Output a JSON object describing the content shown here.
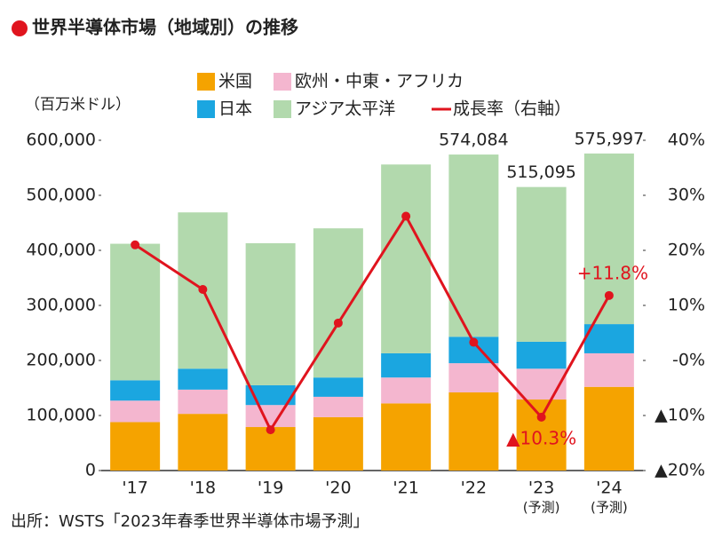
{
  "chart_data": {
    "type": "bar",
    "title": "世界半導体市場（地域別）の推移",
    "y_axis_label": "（百万米ドル）",
    "source": "出所：WSTS「2023年春季世界半導体市場予測」",
    "categories": [
      "'17",
      "'18",
      "'19",
      "'20",
      "'21",
      "'22",
      "'23",
      "'24"
    ],
    "category_notes": [
      null,
      null,
      null,
      null,
      null,
      null,
      "(予測)",
      "(予測)"
    ],
    "stacked": true,
    "series": [
      {
        "name": "米国",
        "color": "#f5a300",
        "values": [
          88000,
          103000,
          79000,
          97000,
          122000,
          142000,
          129000,
          152000
        ]
      },
      {
        "name": "欧州・中東・アフリカ",
        "color": "#f4b6cf",
        "values": [
          39000,
          44000,
          40000,
          37000,
          47000,
          53000,
          56000,
          61000
        ]
      },
      {
        "name": "日本",
        "color": "#1ba6e0",
        "values": [
          37000,
          38000,
          36000,
          35000,
          44000,
          48000,
          49000,
          53000
        ]
      },
      {
        "name": "アジア太平洋",
        "color": "#b2d9ad",
        "values": [
          248000,
          284000,
          258000,
          271000,
          343000,
          331084,
          281095,
          309997
        ]
      },
      {
        "name": "成長率（右軸）",
        "color": "#e0141e",
        "type": "line",
        "axis": "y2",
        "values": [
          21.0,
          12.9,
          -12.6,
          6.8,
          26.2,
          3.3,
          -10.3,
          11.8
        ],
        "value_labels": [
          null,
          null,
          null,
          null,
          null,
          null,
          "▲10.3%",
          "+11.8%"
        ]
      }
    ],
    "totals": [
      null,
      null,
      null,
      null,
      null,
      574084,
      515095,
      575997
    ],
    "total_labels": [
      null,
      null,
      null,
      null,
      null,
      "574,084",
      "515,095",
      "575,997"
    ],
    "ylim": [
      0,
      600000
    ],
    "yticks": [
      0,
      {
        "value": 100000,
        "label": "100,000"
      },
      {
        "value": 200000,
        "label": "200,000"
      },
      {
        "value": 300000,
        "label": "300,000"
      },
      {
        "value": 400000,
        "label": "400,000"
      },
      {
        "value": 500000,
        "label": "500,000"
      },
      {
        "value": 600000,
        "label": "600,000"
      }
    ],
    "y2lim": [
      -20,
      40
    ],
    "y2ticks": [
      {
        "value": -20,
        "label": "▲20%"
      },
      {
        "value": -10,
        "label": "▲10%"
      },
      {
        "value": 0,
        "label": "-0%"
      },
      {
        "value": 10,
        "label": "10%"
      },
      {
        "value": 20,
        "label": "20%"
      },
      {
        "value": 30,
        "label": "30%"
      },
      {
        "value": 40,
        "label": "40%"
      }
    ],
    "grid": false
  }
}
